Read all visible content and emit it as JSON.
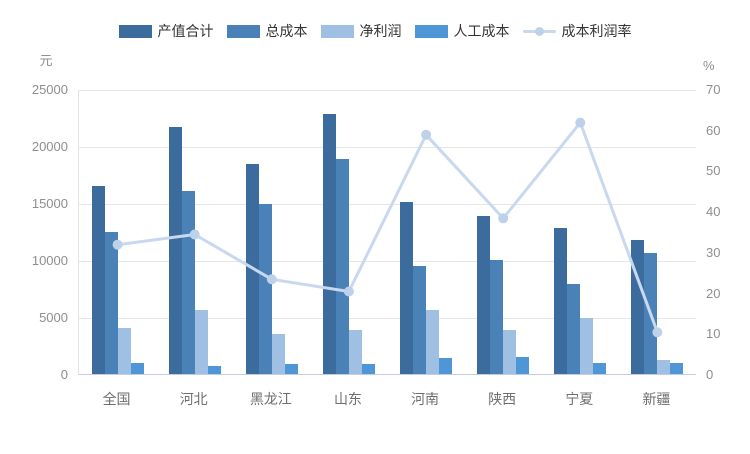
{
  "chart_data": {
    "type": "bar",
    "note_type": "grouped bars with secondary-axis line series",
    "categories": [
      "全国",
      "河北",
      "黑龙江",
      "山东",
      "河南",
      "陕西",
      "宁夏",
      "新疆"
    ],
    "series": [
      {
        "name": "产值合计",
        "type": "bar",
        "color": "#3c6c9d",
        "values": [
          16500,
          21700,
          18400,
          22800,
          15100,
          13900,
          12800,
          11800
        ]
      },
      {
        "name": "总成本",
        "type": "bar",
        "color": "#4a82b8",
        "values": [
          12500,
          16100,
          14900,
          18900,
          9500,
          10000,
          7900,
          10600
        ]
      },
      {
        "name": "净利润",
        "type": "bar",
        "color": "#9fc0e3",
        "values": [
          4000,
          5600,
          3500,
          3900,
          5600,
          3900,
          4900,
          1200
        ]
      },
      {
        "name": "人工成本",
        "type": "bar",
        "color": "#4e96d6",
        "values": [
          1000,
          700,
          900,
          900,
          1400,
          1500,
          1000,
          1000
        ]
      }
    ],
    "line_series": {
      "name": "成本利润率",
      "type": "line",
      "axis": "right",
      "color": "#c8d8ef",
      "marker_color": "#bed1eb",
      "values": [
        32,
        34.5,
        23.5,
        20.5,
        59,
        38.5,
        62,
        10.5
      ]
    },
    "left_axis": {
      "unit": "元",
      "min": 0,
      "max": 25000,
      "step": 5000,
      "ticks": [
        0,
        5000,
        10000,
        15000,
        20000,
        25000
      ]
    },
    "right_axis": {
      "unit": "%",
      "min": 0,
      "max": 70,
      "step": 10,
      "ticks": [
        0,
        10,
        20,
        30,
        40,
        50,
        60,
        70
      ]
    },
    "grid": true,
    "legend_position": "top",
    "title": ""
  }
}
